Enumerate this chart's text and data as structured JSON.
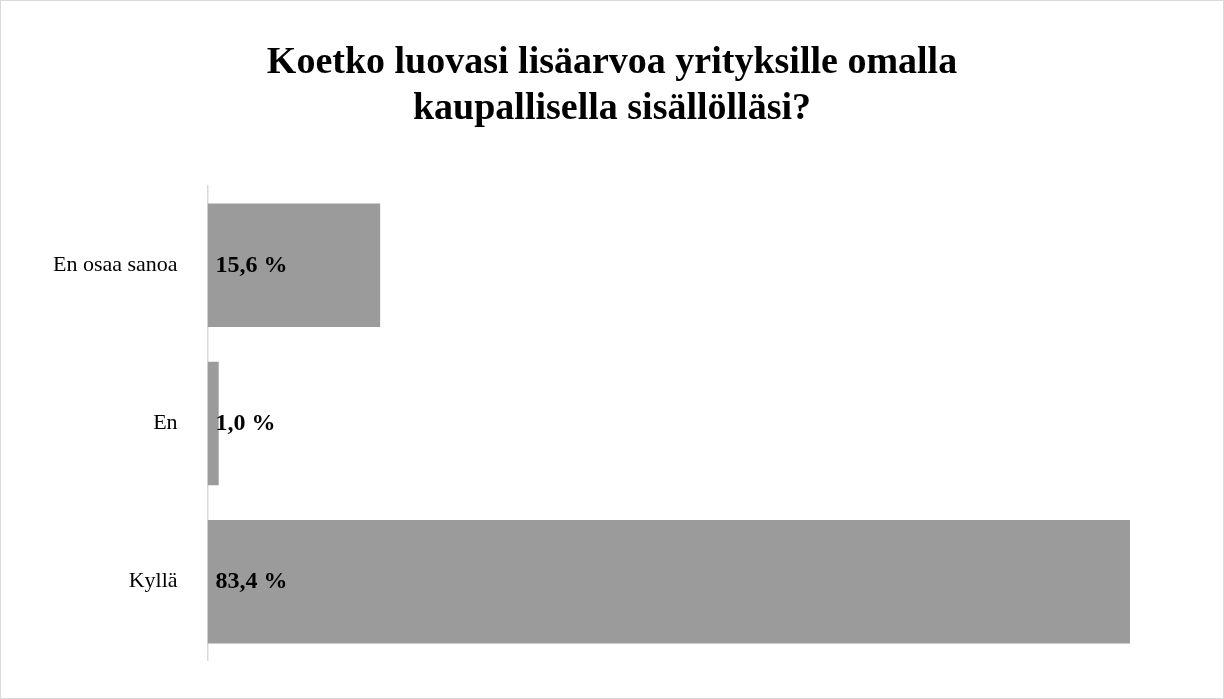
{
  "chart_data": {
    "type": "bar",
    "orientation": "horizontal",
    "title": "Koetko luovasi lisäarvoa yrityksille omalla kaupallisella sisällölläsi?",
    "categories": [
      "En osaa sanoa",
      "En",
      "Kyllä"
    ],
    "values": [
      15.6,
      1.0,
      83.4
    ],
    "value_labels": [
      "15,6 %",
      "1,0 %",
      "83,4 %"
    ],
    "color": "#9b9b9b",
    "legend": false
  }
}
